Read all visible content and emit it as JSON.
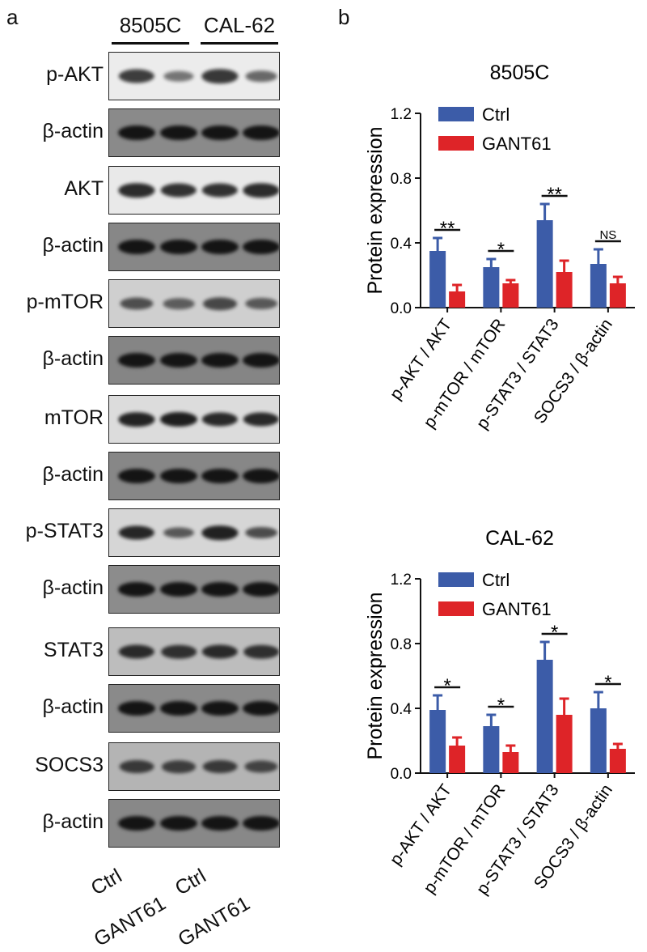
{
  "panels": {
    "a": "a",
    "b": "b"
  },
  "blot": {
    "cell_lines": [
      "8505C",
      "CAL-62"
    ],
    "lanes": [
      "Ctrl",
      "GANT61",
      "Ctrl",
      "GANT61"
    ],
    "rows": [
      {
        "label": "p-AKT",
        "bg": "#ececec",
        "band": "#333333",
        "intensity": [
          0.9,
          0.45,
          0.95,
          0.55
        ]
      },
      {
        "label": "β-actin",
        "bg": "#8a8a8a",
        "band": "#141414",
        "intensity": [
          1,
          1,
          1,
          1
        ]
      },
      {
        "label": "AKT",
        "bg": "#e9e9e9",
        "band": "#262626",
        "intensity": [
          0.95,
          0.9,
          0.9,
          0.95
        ]
      },
      {
        "label": "β-actin",
        "bg": "#878787",
        "band": "#141414",
        "intensity": [
          1,
          1,
          1,
          1
        ]
      },
      {
        "label": "p-mTOR",
        "bg": "#cfcfcf",
        "band": "#2e2e2e",
        "intensity": [
          0.7,
          0.55,
          0.75,
          0.6
        ]
      },
      {
        "label": "β-actin",
        "bg": "#858585",
        "band": "#141414",
        "intensity": [
          1,
          1,
          1,
          1
        ]
      },
      {
        "label": "mTOR",
        "bg": "#dcdcdc",
        "band": "#1e1e1e",
        "intensity": [
          0.95,
          1,
          0.9,
          0.9
        ]
      },
      {
        "label": "β-actin",
        "bg": "#878787",
        "band": "#141414",
        "intensity": [
          1,
          1,
          1,
          1
        ]
      },
      {
        "label": "p-STAT3",
        "bg": "#d6d6d6",
        "band": "#1c1c1c",
        "intensity": [
          0.9,
          0.5,
          0.95,
          0.6
        ]
      },
      {
        "label": "β-actin",
        "bg": "#8c8c8c",
        "band": "#141414",
        "intensity": [
          1,
          1,
          1,
          1
        ]
      },
      {
        "label": "STAT3",
        "bg": "#bdbdbd",
        "band": "#202020",
        "intensity": [
          0.9,
          0.85,
          0.9,
          0.85
        ]
      },
      {
        "label": "β-actin",
        "bg": "#8a8a8a",
        "band": "#141414",
        "intensity": [
          1,
          1,
          1,
          1
        ]
      },
      {
        "label": "SOCS3",
        "bg": "#b4b4b4",
        "band": "#262626",
        "intensity": [
          0.8,
          0.75,
          0.8,
          0.7
        ]
      },
      {
        "label": "β-actin",
        "bg": "#888888",
        "band": "#141414",
        "intensity": [
          1,
          1,
          1,
          1
        ]
      }
    ]
  },
  "colors": {
    "ctrl": "#3c5ca8",
    "gant61": "#de2428",
    "axis": "#111111"
  },
  "chart_data": [
    {
      "type": "bar",
      "title": "8505C",
      "ylabel": "Protein expression",
      "xlabel": "",
      "categories": [
        "p-AKT / AKT",
        "p-mTOR / mTOR",
        "p-STAT3 / STAT3",
        "SOCS3 / β-actin"
      ],
      "series": [
        {
          "name": "Ctrl",
          "values": [
            0.35,
            0.25,
            0.54,
            0.27
          ],
          "errors": [
            0.08,
            0.05,
            0.1,
            0.09
          ]
        },
        {
          "name": "GANT61",
          "values": [
            0.1,
            0.15,
            0.22,
            0.15
          ],
          "errors": [
            0.04,
            0.02,
            0.07,
            0.04
          ]
        }
      ],
      "significance": [
        "**",
        "*",
        "**",
        "NS"
      ],
      "ylim": [
        0,
        1.2
      ],
      "yticks": [
        "0.0",
        "0.4",
        "0.8",
        "1.2"
      ],
      "legend": "top-left",
      "grid": false
    },
    {
      "type": "bar",
      "title": "CAL-62",
      "ylabel": "Protein expression",
      "xlabel": "",
      "categories": [
        "p-AKT / AKT",
        "p-mTOR / mTOR",
        "p-STAT3 / STAT3",
        "SOCS3 / β-actin"
      ],
      "series": [
        {
          "name": "Ctrl",
          "values": [
            0.39,
            0.29,
            0.7,
            0.4
          ],
          "errors": [
            0.09,
            0.07,
            0.11,
            0.1
          ]
        },
        {
          "name": "GANT61",
          "values": [
            0.17,
            0.13,
            0.36,
            0.15
          ],
          "errors": [
            0.05,
            0.04,
            0.1,
            0.03
          ]
        }
      ],
      "significance": [
        "*",
        "*",
        "*",
        "*"
      ],
      "ylim": [
        0,
        1.2
      ],
      "yticks": [
        "0.0",
        "0.4",
        "0.8",
        "1.2"
      ],
      "legend": "top-left",
      "grid": false
    }
  ]
}
